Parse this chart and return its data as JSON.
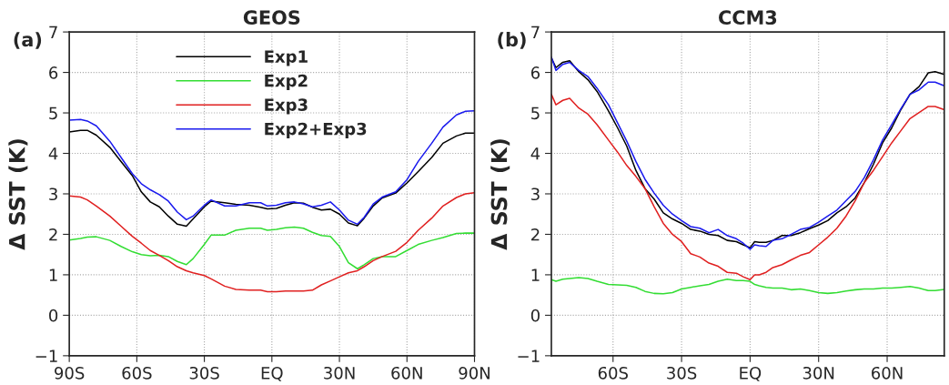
{
  "chart_data": [
    {
      "type": "line",
      "title": "GEOS",
      "ylabel": "Δ SST (K)",
      "annotations": [
        "(a)"
      ],
      "legend": "top",
      "grid": true,
      "line_style": "solid",
      "marker": "none",
      "xlim": [
        -90,
        90
      ],
      "xticks": [
        {
          "value": -90,
          "label": "90S"
        },
        {
          "value": -60,
          "label": "60S"
        },
        {
          "value": -30,
          "label": "30S"
        },
        {
          "value": 0,
          "label": "EQ"
        },
        {
          "value": 30,
          "label": "30N"
        },
        {
          "value": 60,
          "label": "60N"
        },
        {
          "value": 90,
          "label": "90N"
        }
      ],
      "ylim": [
        -1,
        7
      ],
      "yticks": [
        {
          "value": -1,
          "label": "−1"
        },
        0,
        1,
        2,
        3,
        4,
        5,
        6,
        7
      ],
      "x": [
        -90,
        -85,
        -82,
        -78,
        -72,
        -67,
        -62,
        -58,
        -54,
        -50,
        -46,
        -42,
        -38,
        -35,
        -30,
        -27,
        -21,
        -16,
        -10,
        -5,
        -2,
        2,
        6,
        10,
        14,
        18,
        22,
        26,
        30,
        34,
        38,
        41,
        45,
        49,
        55,
        60,
        65,
        71,
        76,
        82,
        86,
        90
      ],
      "series": [
        {
          "name": "Exp1",
          "color": "#000000",
          "values": [
            4.53,
            4.57,
            4.57,
            4.45,
            4.15,
            3.8,
            3.45,
            3.05,
            2.8,
            2.68,
            2.45,
            2.25,
            2.2,
            2.38,
            2.68,
            2.82,
            2.78,
            2.74,
            2.72,
            2.67,
            2.63,
            2.64,
            2.72,
            2.78,
            2.77,
            2.67,
            2.6,
            2.62,
            2.5,
            2.28,
            2.21,
            2.4,
            2.7,
            2.9,
            3.02,
            3.27,
            3.55,
            3.9,
            4.25,
            4.43,
            4.5,
            4.5
          ]
        },
        {
          "name": "Exp2",
          "color": "#33dd33",
          "values": [
            1.86,
            1.9,
            1.93,
            1.94,
            1.85,
            1.7,
            1.57,
            1.5,
            1.47,
            1.48,
            1.45,
            1.33,
            1.25,
            1.4,
            1.75,
            1.98,
            1.98,
            2.1,
            2.15,
            2.15,
            2.1,
            2.12,
            2.16,
            2.18,
            2.15,
            2.05,
            1.97,
            1.95,
            1.7,
            1.3,
            1.15,
            1.25,
            1.4,
            1.45,
            1.45,
            1.6,
            1.75,
            1.85,
            1.92,
            2.02,
            2.03,
            2.03
          ]
        },
        {
          "name": "Exp3",
          "color": "#e02020",
          "values": [
            2.95,
            2.92,
            2.85,
            2.7,
            2.45,
            2.2,
            1.95,
            1.78,
            1.6,
            1.48,
            1.35,
            1.2,
            1.1,
            1.05,
            0.98,
            0.9,
            0.72,
            0.64,
            0.62,
            0.62,
            0.58,
            0.58,
            0.6,
            0.6,
            0.6,
            0.62,
            0.75,
            0.85,
            0.95,
            1.05,
            1.1,
            1.2,
            1.35,
            1.45,
            1.58,
            1.8,
            2.1,
            2.4,
            2.7,
            2.91,
            3.0,
            3.03
          ]
        },
        {
          "name": "Exp2+Exp3",
          "color": "#1a1aee",
          "values": [
            4.82,
            4.84,
            4.8,
            4.68,
            4.3,
            3.9,
            3.5,
            3.25,
            3.1,
            2.98,
            2.82,
            2.55,
            2.36,
            2.45,
            2.72,
            2.85,
            2.7,
            2.7,
            2.78,
            2.78,
            2.7,
            2.72,
            2.78,
            2.8,
            2.75,
            2.68,
            2.72,
            2.8,
            2.6,
            2.35,
            2.25,
            2.42,
            2.75,
            2.92,
            3.05,
            3.35,
            3.8,
            4.25,
            4.65,
            4.95,
            5.04,
            5.05
          ]
        }
      ]
    },
    {
      "type": "line",
      "title": "CCM3",
      "ylabel": "Δ SST (K)",
      "annotations": [
        "(b)"
      ],
      "grid": true,
      "line_style": "solid",
      "marker": "none",
      "xlim": [
        -87,
        85
      ],
      "xticks": [
        {
          "value": -60,
          "label": "60S"
        },
        {
          "value": -30,
          "label": "30S"
        },
        {
          "value": 0,
          "label": "EQ"
        },
        {
          "value": 30,
          "label": "30N"
        },
        {
          "value": 60,
          "label": "60N"
        }
      ],
      "ylim": [
        -1,
        7
      ],
      "yticks": [
        {
          "value": -1,
          "label": "−1"
        },
        0,
        1,
        2,
        3,
        4,
        5,
        6,
        7
      ],
      "x": [
        -87,
        -85,
        -82,
        -79,
        -75,
        -71,
        -67,
        -62,
        -58,
        -54,
        -50,
        -46,
        -42,
        -38,
        -34,
        -30,
        -26,
        -22,
        -18,
        -14,
        -10,
        -6,
        -3,
        0,
        2,
        4,
        7,
        10,
        14,
        18,
        22,
        26,
        30,
        34,
        38,
        42,
        46,
        50,
        54,
        58,
        62,
        66,
        70,
        74,
        78,
        81,
        85
      ],
      "series": [
        {
          "color": "#000000",
          "values": [
            6.36,
            6.12,
            6.25,
            6.29,
            6.02,
            5.82,
            5.53,
            5.05,
            4.63,
            4.18,
            3.58,
            3.13,
            2.87,
            2.53,
            2.38,
            2.27,
            2.12,
            2.08,
            2.0,
            1.97,
            1.85,
            1.82,
            1.74,
            1.67,
            1.82,
            1.8,
            1.8,
            1.85,
            1.97,
            1.97,
            2.04,
            2.14,
            2.23,
            2.34,
            2.53,
            2.68,
            2.9,
            3.28,
            3.73,
            4.26,
            4.63,
            5.08,
            5.46,
            5.65,
            5.99,
            6.02,
            5.95
          ]
        },
        {
          "color": "#33dd33",
          "values": [
            0.88,
            0.84,
            0.89,
            0.91,
            0.93,
            0.91,
            0.84,
            0.76,
            0.75,
            0.74,
            0.69,
            0.59,
            0.54,
            0.53,
            0.56,
            0.65,
            0.69,
            0.73,
            0.76,
            0.84,
            0.89,
            0.86,
            0.86,
            0.84,
            0.76,
            0.73,
            0.69,
            0.67,
            0.67,
            0.63,
            0.65,
            0.61,
            0.56,
            0.54,
            0.56,
            0.6,
            0.63,
            0.65,
            0.65,
            0.67,
            0.67,
            0.69,
            0.71,
            0.67,
            0.61,
            0.61,
            0.64
          ]
        },
        {
          "color": "#e02020",
          "values": [
            5.46,
            5.2,
            5.31,
            5.36,
            5.12,
            4.97,
            4.71,
            4.33,
            4.03,
            3.7,
            3.43,
            3.13,
            2.68,
            2.27,
            2.0,
            1.82,
            1.52,
            1.44,
            1.29,
            1.21,
            1.06,
            1.04,
            0.95,
            0.88,
            1.0,
            1.0,
            1.06,
            1.18,
            1.25,
            1.37,
            1.48,
            1.55,
            1.74,
            1.93,
            2.15,
            2.45,
            2.83,
            3.28,
            3.58,
            3.92,
            4.26,
            4.56,
            4.86,
            5.01,
            5.16,
            5.16,
            5.08
          ]
        },
        {
          "color": "#1a1aee",
          "values": [
            6.38,
            6.05,
            6.2,
            6.25,
            6.05,
            5.9,
            5.61,
            5.2,
            4.75,
            4.3,
            3.8,
            3.36,
            3.02,
            2.72,
            2.5,
            2.34,
            2.19,
            2.15,
            2.04,
            2.12,
            1.97,
            1.89,
            1.78,
            1.63,
            1.74,
            1.72,
            1.7,
            1.85,
            1.89,
            2.0,
            2.12,
            2.17,
            2.3,
            2.45,
            2.6,
            2.83,
            3.06,
            3.4,
            3.84,
            4.33,
            4.71,
            5.1,
            5.46,
            5.57,
            5.76,
            5.76,
            5.67
          ]
        }
      ]
    }
  ]
}
